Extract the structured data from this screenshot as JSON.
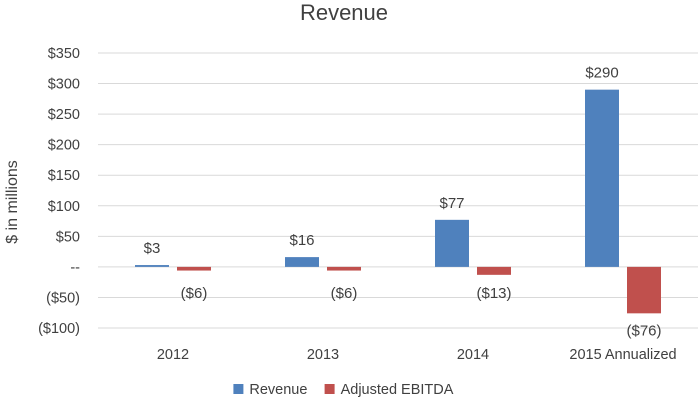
{
  "chart_data": {
    "type": "bar",
    "title": "Revenue",
    "ylabel": "$ in millions",
    "xlabel": "",
    "categories": [
      "2012",
      "2013",
      "2014",
      "2015 Annualized"
    ],
    "series": [
      {
        "name": "Revenue",
        "color": "#4f81bd",
        "values": [
          3,
          16,
          77,
          290
        ],
        "labels": [
          "$3",
          "$16",
          "$77",
          "$290"
        ]
      },
      {
        "name": "Adjusted EBITDA",
        "color": "#c0504d",
        "values": [
          -6,
          -6,
          -13,
          -76
        ],
        "labels": [
          "($6)",
          "($6)",
          "($13)",
          "($76)"
        ]
      }
    ],
    "ylim": [
      -100,
      350
    ],
    "yticks": [
      350,
      300,
      250,
      200,
      150,
      100,
      50,
      0,
      -50,
      -100
    ],
    "ytick_labels": [
      "$350",
      "$300",
      "$250",
      "$200",
      "$150",
      "$100",
      "$50",
      "--",
      "($50)",
      "($100)"
    ],
    "grid": true,
    "gridline_color": "#d9d9d9",
    "legend_position": "bottom"
  }
}
